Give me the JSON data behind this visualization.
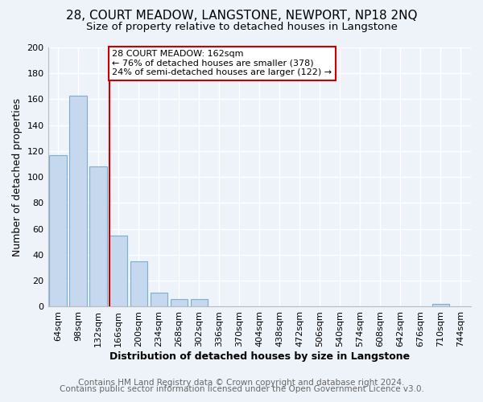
{
  "title": "28, COURT MEADOW, LANGSTONE, NEWPORT, NP18 2NQ",
  "subtitle": "Size of property relative to detached houses in Langstone",
  "xlabel": "Distribution of detached houses by size in Langstone",
  "ylabel": "Number of detached properties",
  "bar_color": "#c5d8ed",
  "bar_edge_color": "#7aafd4",
  "categories": [
    "64sqm",
    "98sqm",
    "132sqm",
    "166sqm",
    "200sqm",
    "234sqm",
    "268sqm",
    "302sqm",
    "336sqm",
    "370sqm",
    "404sqm",
    "438sqm",
    "472sqm",
    "506sqm",
    "540sqm",
    "574sqm",
    "608sqm",
    "642sqm",
    "676sqm",
    "710sqm",
    "744sqm"
  ],
  "values": [
    117,
    163,
    108,
    55,
    35,
    11,
    6,
    6,
    0,
    0,
    0,
    0,
    0,
    0,
    0,
    0,
    0,
    0,
    0,
    2,
    0
  ],
  "ylim": [
    0,
    200
  ],
  "yticks": [
    0,
    20,
    40,
    60,
    80,
    100,
    120,
    140,
    160,
    180,
    200
  ],
  "vline_x_idx": 3,
  "vline_color": "#cc0000",
  "annotation_text": "28 COURT MEADOW: 162sqm\n← 76% of detached houses are smaller (378)\n24% of semi-detached houses are larger (122) →",
  "annotation_box_color": "#ffffff",
  "annotation_box_edge": "#cc0000",
  "footer1": "Contains HM Land Registry data © Crown copyright and database right 2024.",
  "footer2": "Contains public sector information licensed under the Open Government Licence v3.0.",
  "bg_color": "#eef2f9",
  "grid_color": "#ffffff",
  "title_fontsize": 11,
  "subtitle_fontsize": 9.5,
  "axis_label_fontsize": 9,
  "tick_fontsize": 8,
  "annotation_fontsize": 8,
  "footer_fontsize": 7.5
}
